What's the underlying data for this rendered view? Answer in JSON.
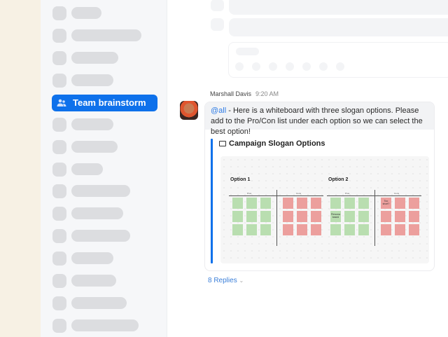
{
  "sidebar": {
    "active_item": "Team brainstorm",
    "active_icon": "group-icon"
  },
  "message": {
    "author": "Marshall Davis",
    "time": "9:20 AM",
    "mention": "@all",
    "text": " - Here is a whiteboard with three slogan options. Please add to the Pro/Con list under each option so we can select the best option!",
    "card_title": "Campaign Slogan Options",
    "card_icon": "whiteboard-icon",
    "whiteboard": {
      "options": [
        {
          "label": "Option 1",
          "pros_label": "Pros",
          "cons_label": "Cons"
        },
        {
          "label": "Option 2",
          "pros_label": "Pros",
          "cons_label": "Cons"
        }
      ],
      "notes": {
        "persona": "Persona based",
        "short": "Too short?"
      }
    },
    "replies": "8 Replies"
  },
  "colors": {
    "accent": "#0e71eb",
    "pro_note": "#b9deb0",
    "con_note": "#ec9f9d"
  }
}
